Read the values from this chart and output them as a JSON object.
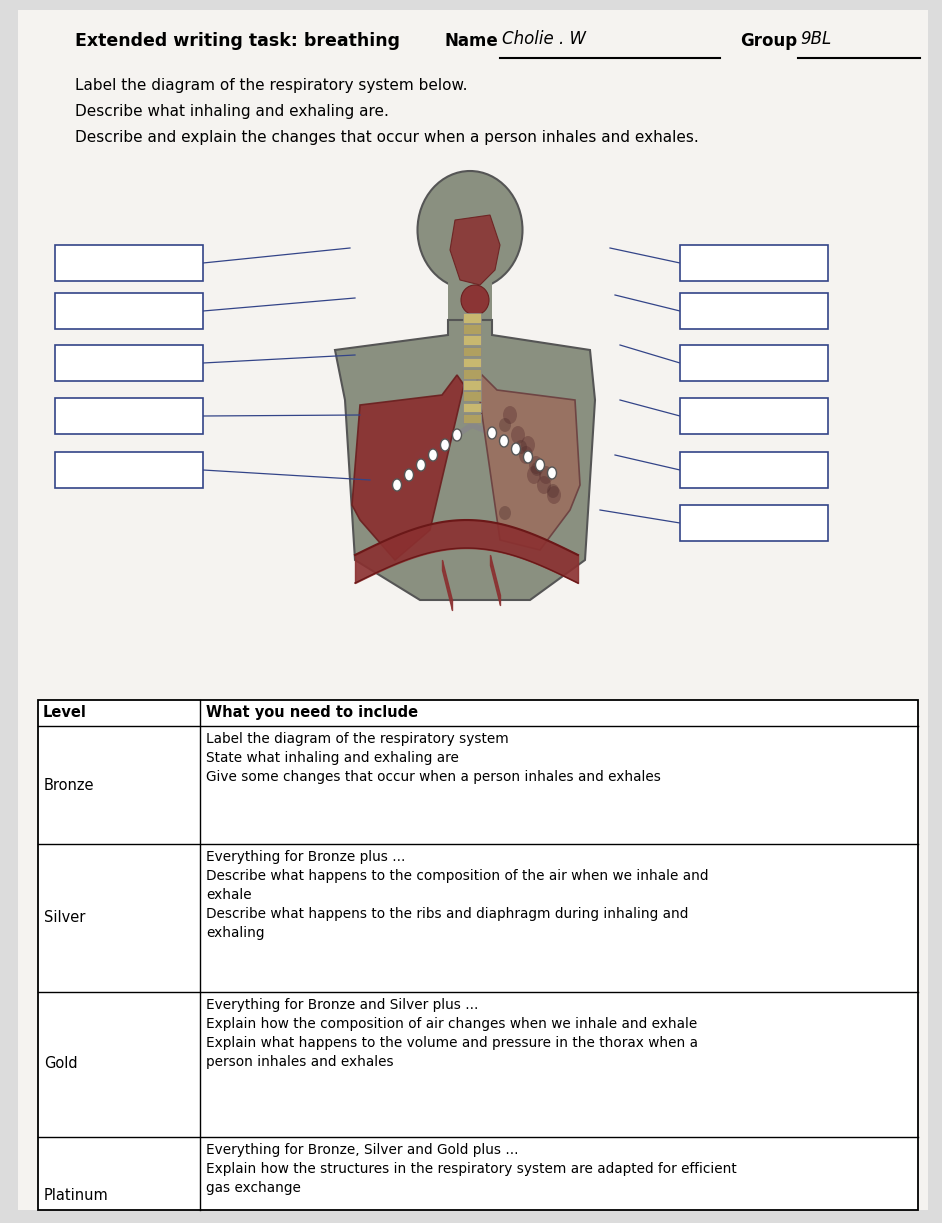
{
  "title_bold": "Extended writing task: breathing",
  "name_label": "Name",
  "name_value": "Cholie . W",
  "group_label": "Group",
  "group_value": "9BL",
  "instructions": [
    "Label the diagram of the respiratory system below.",
    "Describe what inhaling and exhaling are.",
    "Describe and explain the changes that occur when a person inhales and exhales."
  ],
  "bg_color": "#dcdcdc",
  "white_panel_color": "#f0eeec",
  "table_rows": [
    {
      "level": "Bronze",
      "content": [
        "Label the diagram of the respiratory system",
        "State what inhaling and exhaling are",
        "Give some changes that occur when a person inhales and exhales"
      ]
    },
    {
      "level": "Silver",
      "content": [
        "Everything for Bronze plus ...",
        "Describe what happens to the composition of the air when we inhale and",
        "exhale",
        "Describe what happens to the ribs and diaphragm during inhaling and",
        "exhaling"
      ]
    },
    {
      "level": "Gold",
      "content": [
        "Everything for Bronze and Silver plus ...",
        "Explain how the composition of air changes when we inhale and exhale",
        "Explain what happens to the volume and pressure in the thorax when a",
        "person inhales and exhales"
      ]
    },
    {
      "level": "Platinum",
      "content": [
        "Everything for Bronze, Silver and Gold plus ...",
        "Explain how the structures in the respiratory system are adapted for efficient",
        "gas exchange"
      ]
    }
  ],
  "body_color": "#8a9080",
  "lung_left_color": "#8B3030",
  "lung_right_color": "#6b5050",
  "diaphragm_color": "#7a2828",
  "trachea_color": "#c8b870",
  "throat_color": "#8B4040"
}
